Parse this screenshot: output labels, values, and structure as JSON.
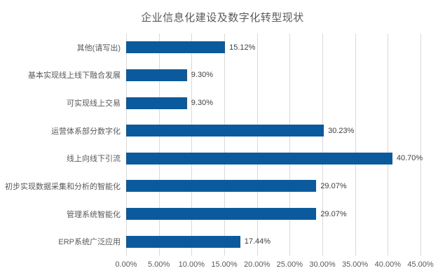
{
  "title": "企业信息化建设及数字化转型现状",
  "colors": {
    "bar": "#0b5a9d",
    "gridline": "#d9d9d9",
    "title_text": "#595959",
    "axis_text": "#595959",
    "value_text": "#404040",
    "background": "#ffffff"
  },
  "chart_data": {
    "type": "bar",
    "orientation": "horizontal",
    "title": "企业信息化建设及数字化转型现状",
    "categories": [
      "其他(请写出)",
      "基本实现线上线下融合发展",
      "可实现线上交易",
      "运营体系部分数字化",
      "线上向线下引流",
      "初步实现数据采集和分析的智能化",
      "管理系统智能化",
      "ERP系统广泛应用"
    ],
    "values": [
      15.12,
      9.3,
      9.3,
      30.23,
      40.7,
      29.07,
      29.07,
      17.44
    ],
    "value_labels": [
      "15.12%",
      "9.30%",
      "9.30%",
      "30.23%",
      "40.70%",
      "29.07%",
      "29.07%",
      "17.44%"
    ],
    "xlabel": "",
    "ylabel": "",
    "xlim": [
      0,
      45
    ],
    "x_tick_values": [
      0,
      5,
      10,
      15,
      20,
      25,
      30,
      35,
      40,
      45
    ],
    "x_tick_labels": [
      "0.00%",
      "5.00%",
      "10.00%",
      "15.00%",
      "20.00%",
      "25.00%",
      "30.00%",
      "35.00%",
      "40.00%",
      "45.00%"
    ],
    "grid": "vertical-on",
    "legend": "none"
  }
}
